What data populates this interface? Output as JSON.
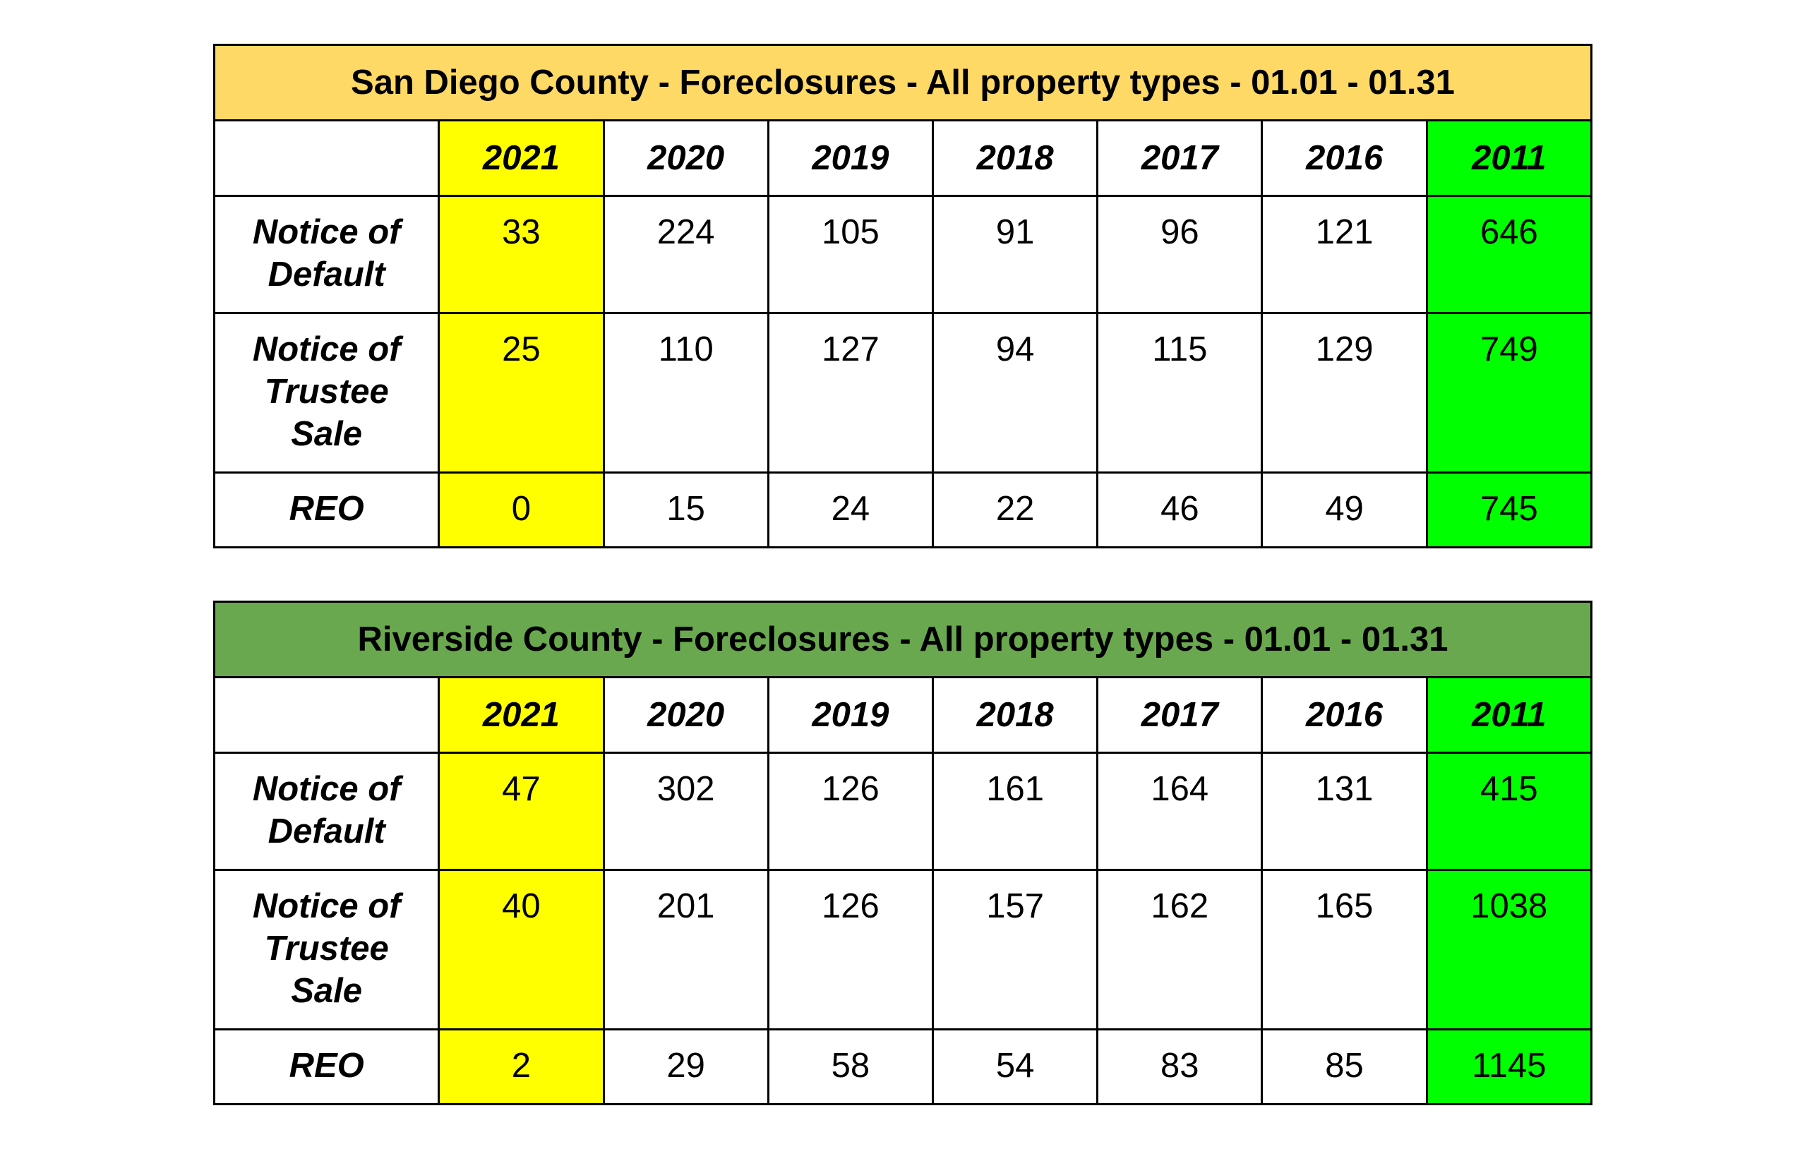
{
  "colors": {
    "highlight_2021": "#ffff00",
    "highlight_2011": "#00ff00",
    "sd_title_bg": "#ffd966",
    "rv_title_bg": "#6aa84f"
  },
  "tables": [
    {
      "title": "San Diego County - Foreclosures - All property types - 01.01 - 01.31",
      "years": [
        "2021",
        "2020",
        "2019",
        "2018",
        "2017",
        "2016",
        "2011"
      ],
      "rows": [
        {
          "label_lines": [
            "Notice of",
            "Default"
          ],
          "values": [
            "33",
            "224",
            "105",
            "91",
            "96",
            "121",
            "646"
          ]
        },
        {
          "label_lines": [
            "Notice of",
            "Trustee",
            "Sale"
          ],
          "values": [
            "25",
            "110",
            "127",
            "94",
            "115",
            "129",
            "749"
          ]
        },
        {
          "label_lines": [
            "REO"
          ],
          "values": [
            "0",
            "15",
            "24",
            "22",
            "46",
            "49",
            "745"
          ]
        }
      ]
    },
    {
      "title": "Riverside County - Foreclosures - All property types - 01.01 - 01.31",
      "years": [
        "2021",
        "2020",
        "2019",
        "2018",
        "2017",
        "2016",
        "2011"
      ],
      "rows": [
        {
          "label_lines": [
            "Notice of",
            "Default"
          ],
          "values": [
            "47",
            "302",
            "126",
            "161",
            "164",
            "131",
            "415"
          ]
        },
        {
          "label_lines": [
            "Notice of",
            "Trustee",
            "Sale"
          ],
          "values": [
            "40",
            "201",
            "126",
            "157",
            "162",
            "165",
            "1038"
          ]
        },
        {
          "label_lines": [
            "REO"
          ],
          "values": [
            "2",
            "29",
            "58",
            "54",
            "83",
            "85",
            "1145"
          ]
        }
      ]
    }
  ]
}
